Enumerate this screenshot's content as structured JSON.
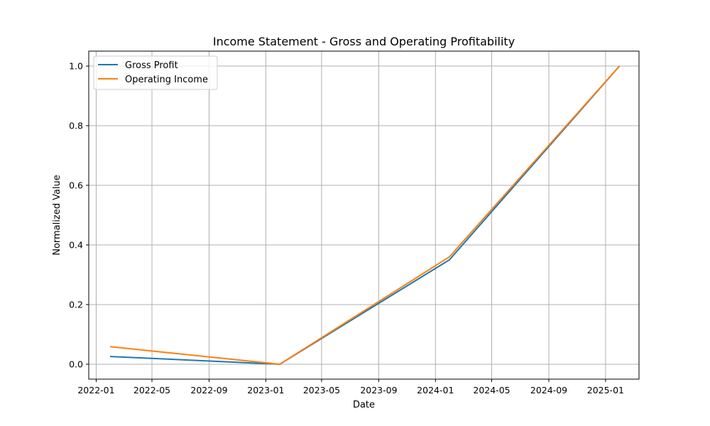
{
  "chart_data": {
    "type": "line",
    "title": "Income Statement - Gross and Operating Profitability",
    "xlabel": "Date",
    "ylabel": "Normalized Value",
    "xlim": [
      "2021-12-16",
      "2025-03-14"
    ],
    "ylim": [
      -0.05,
      1.05
    ],
    "x_ticks": [
      "2022-01",
      "2022-05",
      "2022-09",
      "2023-01",
      "2023-05",
      "2023-09",
      "2024-01",
      "2024-05",
      "2024-09",
      "2025-01"
    ],
    "y_ticks": [
      "0.0",
      "0.2",
      "0.4",
      "0.6",
      "0.8",
      "1.0"
    ],
    "grid": true,
    "legend_position": "top-left",
    "x": [
      "2022-01-31",
      "2023-01-31",
      "2024-01-31",
      "2025-01-31"
    ],
    "series": [
      {
        "name": "Gross Profit",
        "color": "#1f77b4",
        "values": [
          0.026,
          0.0,
          0.35,
          1.0
        ]
      },
      {
        "name": "Operating Income",
        "color": "#ff7f0e",
        "values": [
          0.059,
          0.0,
          0.36,
          1.0
        ]
      }
    ]
  }
}
